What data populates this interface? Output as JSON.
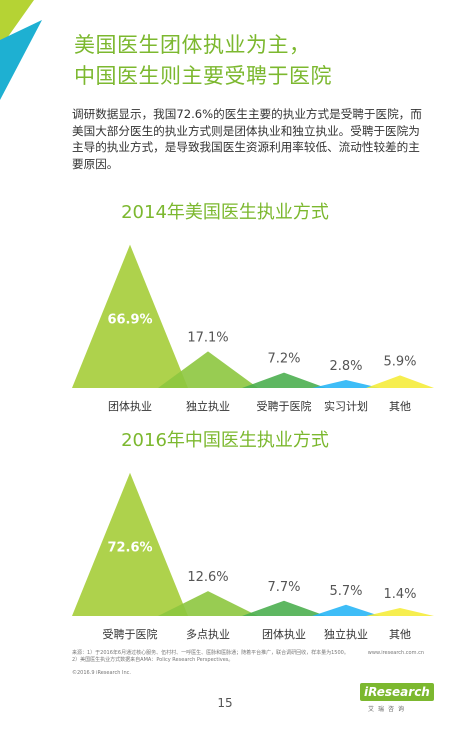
{
  "headline": {
    "line1": "美国医生团体执业为主，",
    "line2": "中国医生则主要受聘于医院"
  },
  "body_text": "调研数据显示，我国72.6%的医生主要的执业方式是受聘于医院，而美国大部分医生的执业方式则是团体执业和独立执业。受聘于医院为主导的执业方式，是导致我国医生资源利用率较低、流动性较差的主要原因。",
  "colors": {
    "accent": "#7cb82f",
    "peaks": [
      "#a5cd39",
      "#8dc63f",
      "#4caf50",
      "#29b6f6",
      "#f5ec3c"
    ],
    "corner": [
      "#b5d334",
      "#1eb0d2"
    ]
  },
  "chart_data": [
    {
      "type": "bar",
      "title": "2014年美国医生执业方式",
      "categories": [
        "团体执业",
        "独立执业",
        "受聘于医院",
        "实习计划",
        "其他"
      ],
      "values": [
        66.9,
        17.1,
        7.2,
        2.8,
        5.9
      ],
      "value_labels": [
        "66.9%",
        "17.1%",
        "7.2%",
        "2.8%",
        "5.9%"
      ],
      "ylim": [
        0,
        70
      ],
      "grid": false,
      "legend": "none"
    },
    {
      "type": "bar",
      "title": "2016年中国医生执业方式",
      "categories": [
        "受聘于医院",
        "多点执业",
        "团体执业",
        "独立执业",
        "其他"
      ],
      "values": [
        72.6,
        12.6,
        7.7,
        5.7,
        1.4
      ],
      "value_labels": [
        "72.6%",
        "12.6%",
        "7.7%",
        "5.7%",
        "1.4%"
      ],
      "ylim": [
        0,
        76
      ],
      "grid": false,
      "legend": "none"
    }
  ],
  "footnote": {
    "line1": "来源：1）于2016年6月通过核心服务、伍村村、一呼医生、医脉和医脉通；随着平台推广，联合调研回收，样本量为1500。",
    "line2": "2）美国医生执业方式数据来自AMA：Policy Research Perspectives。",
    "url": "www.iresearch.com.cn"
  },
  "copyright": "©2016.9 iResearch Inc.",
  "logo": {
    "name": "iResearch",
    "sub": "艾瑞咨询"
  },
  "page_number": "15"
}
